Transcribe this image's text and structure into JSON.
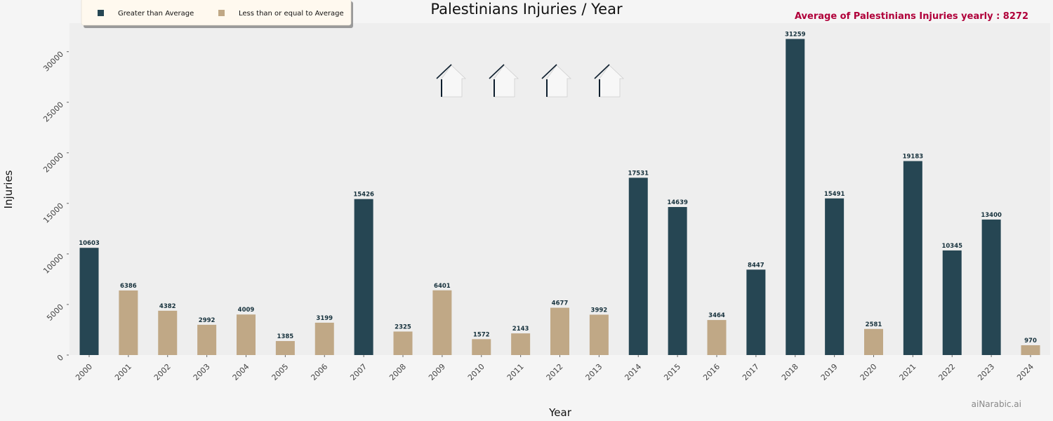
{
  "chart_data": {
    "type": "bar",
    "title": "Palestinians Injuries / Year",
    "xlabel": "Year",
    "ylabel": "Injuries",
    "categories": [
      "2000",
      "2001",
      "2002",
      "2003",
      "2004",
      "2005",
      "2006",
      "2007",
      "2008",
      "2009",
      "2010",
      "2011",
      "2012",
      "2013",
      "2014",
      "2015",
      "2016",
      "2017",
      "2018",
      "2019",
      "2020",
      "2021",
      "2022",
      "2023",
      "2024"
    ],
    "values": [
      10603,
      6386,
      4382,
      2992,
      4009,
      1385,
      3199,
      15426,
      2325,
      6401,
      1572,
      2143,
      4677,
      3992,
      17531,
      14639,
      3464,
      8447,
      31259,
      15491,
      2581,
      19183,
      10345,
      13400,
      970
    ],
    "ylim": [
      0,
      32822
    ],
    "yticks": [
      0,
      5000,
      10000,
      15000,
      20000,
      25000,
      30000
    ],
    "average": 8272,
    "average_note": "Average of Palestinians Injuries yearly : 8272",
    "legend": [
      {
        "label": "Greater than Average",
        "color": "#264653"
      },
      {
        "label": "Less than or equal to Average",
        "color": "#c0a886"
      }
    ],
    "legend_position": "top-left",
    "grid": false,
    "colors": {
      "above": "#264653",
      "below": "#c0a886",
      "plot_bg": "#eeeeee",
      "page_bg": "#f5f5f5",
      "note": "#b0003a"
    }
  },
  "decorations": {
    "house_icons": 4
  },
  "watermark": "aiNarabic.ai"
}
